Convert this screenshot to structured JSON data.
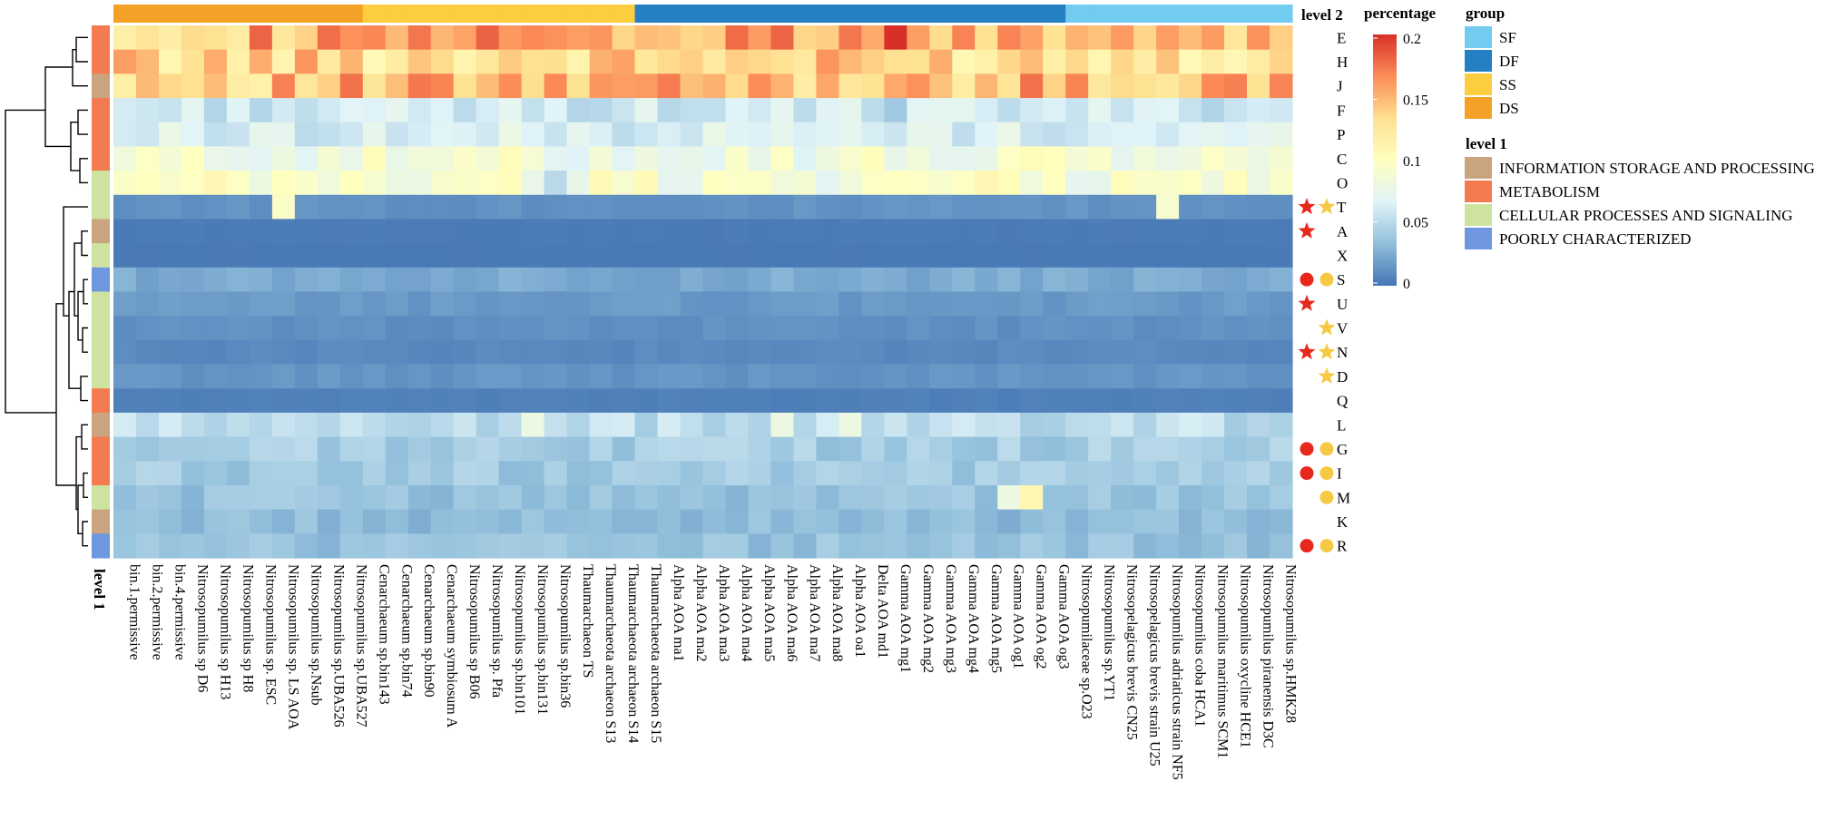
{
  "chart_data": {
    "type": "heatmap",
    "title": "",
    "color_scale": {
      "title": "percentage",
      "ticks": [
        0.2,
        0.15,
        0.1,
        0.05,
        0
      ],
      "tick_labels": [
        "0.2",
        "0.15",
        "0.1",
        "0.05",
        "0"
      ],
      "min": 0,
      "max": 0.2,
      "stops": [
        "#4575B4",
        "#91BFDB",
        "#E0F3F8",
        "#FFFFBF",
        "#FEE090",
        "#FC8D59",
        "#D73027"
      ]
    },
    "column_annotation": {
      "title": "level 2"
    },
    "row_annotation": {
      "title": "level 1"
    },
    "columns": [
      {
        "name": "bin.1.permissive",
        "group": "DS"
      },
      {
        "name": "bin.2.permissive",
        "group": "DS"
      },
      {
        "name": "bin.4.permissive",
        "group": "DS"
      },
      {
        "name": "Nitrosopumilus sp D6",
        "group": "DS"
      },
      {
        "name": "Nitrosopumilus sp H13",
        "group": "DS"
      },
      {
        "name": "Nitrosopumilus sp H8",
        "group": "DS"
      },
      {
        "name": "Nitrosopumilus sp. ESC",
        "group": "DS"
      },
      {
        "name": "Nitrosopumilus sp. LS AOA",
        "group": "DS"
      },
      {
        "name": "Nitrosopumilus sp.Nsub",
        "group": "DS"
      },
      {
        "name": "Nitrosopumilus sp.UBA526",
        "group": "DS"
      },
      {
        "name": "Nitrosopumilus sp.UBA527",
        "group": "DS"
      },
      {
        "name": "Cenarchaeum sp.bin143",
        "group": "SS"
      },
      {
        "name": "Cenarchaeum sp.bin74",
        "group": "SS"
      },
      {
        "name": "Cenarchaeum sp.bin90",
        "group": "SS"
      },
      {
        "name": "Cenarchaeum symbiosum A",
        "group": "SS"
      },
      {
        "name": "Nitrosopumilus sp B06",
        "group": "SS"
      },
      {
        "name": "Nitrosopumilus sp. Pfa",
        "group": "SS"
      },
      {
        "name": "Nitrosopumilus sp.bin101",
        "group": "SS"
      },
      {
        "name": "Nitrosopumilus sp.bin131",
        "group": "SS"
      },
      {
        "name": "Nitrosopumilus sp.bin36",
        "group": "SS"
      },
      {
        "name": "Thaumarchaeon TS",
        "group": "SS"
      },
      {
        "name": "Thaumarchaeota archaeon S13",
        "group": "SS"
      },
      {
        "name": "Thaumarchaeota archaeon S14",
        "group": "SS"
      },
      {
        "name": "Thaumarchaeota archaeon S15",
        "group": "DF"
      },
      {
        "name": "Alpha AOA ma1",
        "group": "DF"
      },
      {
        "name": "Alpha AOA ma2",
        "group": "DF"
      },
      {
        "name": "Alpha AOA ma3",
        "group": "DF"
      },
      {
        "name": "Alpha AOA ma4",
        "group": "DF"
      },
      {
        "name": "Alpha AOA ma5",
        "group": "DF"
      },
      {
        "name": "Alpha AOA ma6",
        "group": "DF"
      },
      {
        "name": "Alpha AOA ma7",
        "group": "DF"
      },
      {
        "name": "Alpha AOA ma8",
        "group": "DF"
      },
      {
        "name": "Alpha AOA oa1",
        "group": "DF"
      },
      {
        "name": "Delta AOA md1",
        "group": "DF"
      },
      {
        "name": "Gamma AOA mg1",
        "group": "DF"
      },
      {
        "name": "Gamma AOA mg2",
        "group": "DF"
      },
      {
        "name": "Gamma AOA mg3",
        "group": "DF"
      },
      {
        "name": "Gamma AOA mg4",
        "group": "DF"
      },
      {
        "name": "Gamma AOA mg5",
        "group": "DF"
      },
      {
        "name": "Gamma AOA og1",
        "group": "DF"
      },
      {
        "name": "Gamma AOA og2",
        "group": "DF"
      },
      {
        "name": "Gamma AOA og3",
        "group": "DF"
      },
      {
        "name": "Nitrosopumilaceae sp.O23",
        "group": "SF"
      },
      {
        "name": "Nitrosopumilus sp.YT1",
        "group": "SF"
      },
      {
        "name": "Nitrosopelagicus brevis CN25",
        "group": "SF"
      },
      {
        "name": "Nitrosopelagicus brevis strain U25",
        "group": "SF"
      },
      {
        "name": "Nitrosopumilus adriaticus strain NF5",
        "group": "SF"
      },
      {
        "name": "Nitrosopumilus coba HCA1",
        "group": "SF"
      },
      {
        "name": "Nitrosopumilus maritimus SCM1",
        "group": "SF"
      },
      {
        "name": "Nitrosopumilus oxycline HCE1",
        "group": "SF"
      },
      {
        "name": "Nitrosopumilus piranensis D3C",
        "group": "SF"
      },
      {
        "name": "Nitrosopumilus sp.HMK28",
        "group": "SF"
      }
    ],
    "rows": [
      {
        "label": "E",
        "category": "METABOLISM",
        "markers": []
      },
      {
        "label": "H",
        "category": "METABOLISM",
        "markers": []
      },
      {
        "label": "J",
        "category": "INFORMATION STORAGE AND PROCESSING",
        "markers": []
      },
      {
        "label": "F",
        "category": "METABOLISM",
        "markers": []
      },
      {
        "label": "P",
        "category": "METABOLISM",
        "markers": []
      },
      {
        "label": "C",
        "category": "METABOLISM",
        "markers": []
      },
      {
        "label": "O",
        "category": "CELLULAR PROCESSES AND SIGNALING",
        "markers": []
      },
      {
        "label": "T",
        "category": "CELLULAR PROCESSES AND SIGNALING",
        "markers": [
          "red-star",
          "yellow-star"
        ]
      },
      {
        "label": "A",
        "category": "INFORMATION STORAGE AND PROCESSING",
        "markers": [
          "red-star"
        ]
      },
      {
        "label": "X",
        "category": "CELLULAR PROCESSES AND SIGNALING",
        "markers": []
      },
      {
        "label": "S",
        "category": "POORLY CHARACTERIZED",
        "markers": [
          "red-circle",
          "yellow-circle"
        ]
      },
      {
        "label": "U",
        "category": "CELLULAR PROCESSES AND SIGNALING",
        "markers": [
          "red-star"
        ]
      },
      {
        "label": "V",
        "category": "CELLULAR PROCESSES AND SIGNALING",
        "markers": [
          "yellow-star"
        ]
      },
      {
        "label": "N",
        "category": "CELLULAR PROCESSES AND SIGNALING",
        "markers": [
          "red-star",
          "yellow-star"
        ]
      },
      {
        "label": "D",
        "category": "CELLULAR PROCESSES AND SIGNALING",
        "markers": [
          "yellow-star"
        ]
      },
      {
        "label": "Q",
        "category": "METABOLISM",
        "markers": []
      },
      {
        "label": "L",
        "category": "INFORMATION STORAGE AND PROCESSING",
        "markers": []
      },
      {
        "label": "G",
        "category": "METABOLISM",
        "markers": [
          "red-circle",
          "yellow-circle"
        ]
      },
      {
        "label": "I",
        "category": "METABOLISM",
        "markers": [
          "red-circle",
          "yellow-circle"
        ]
      },
      {
        "label": "M",
        "category": "CELLULAR PROCESSES AND SIGNALING",
        "markers": [
          "yellow-circle"
        ]
      },
      {
        "label": "K",
        "category": "INFORMATION STORAGE AND PROCESSING",
        "markers": []
      },
      {
        "label": "R",
        "category": "POORLY CHARACTERIZED",
        "markers": [
          "red-circle",
          "yellow-circle"
        ]
      }
    ],
    "row_means": [
      0.15,
      0.135,
      0.145,
      0.06,
      0.065,
      0.085,
      0.09,
      0.013,
      0.003,
      0.002,
      0.024,
      0.016,
      0.012,
      0.009,
      0.014,
      0.005,
      0.052,
      0.042,
      0.04,
      0.036,
      0.032,
      0.036
    ],
    "cell_overrides": [
      {
        "row": "E",
        "column": "Gamma AOA mg1",
        "value": 0.205
      },
      {
        "row": "E",
        "column": "Alpha AOA oa1",
        "value": 0.175
      },
      {
        "row": "E",
        "column": "Cenarchaeum sp.bin90",
        "value": 0.175
      },
      {
        "row": "E",
        "column": "Nitrosopumilus sp.bin36",
        "value": 0.165
      },
      {
        "row": "E",
        "column": "Thaumarchaeon TS",
        "value": 0.16
      },
      {
        "row": "J",
        "column": "Gamma AOA mg2",
        "value": 0.165
      },
      {
        "row": "J",
        "column": "Thaumarchaeota archaeon S14",
        "value": 0.16
      },
      {
        "row": "O",
        "column": "Nitrosopumilus sp.bin36",
        "value": 0.05
      },
      {
        "row": "T",
        "column": "Nitrosopumilus sp. LS AOA",
        "value": 0.095
      },
      {
        "row": "T",
        "column": "Nitrosopumilus adriaticus strain NF5",
        "value": 0.09
      },
      {
        "row": "F",
        "column": "Gamma AOA mg1",
        "value": 0.04
      },
      {
        "row": "L",
        "column": "Nitrosopumilus sp.bin131",
        "value": 0.08
      },
      {
        "row": "L",
        "column": "Alpha AOA ma6",
        "value": 0.08
      },
      {
        "row": "L",
        "column": "Alpha AOA oa1",
        "value": 0.08
      },
      {
        "row": "M",
        "column": "Gamma AOA og1",
        "value": 0.08
      },
      {
        "row": "M",
        "column": "Gamma AOA og2",
        "value": 0.11
      }
    ],
    "legend": {
      "group": {
        "title": "group",
        "entries": [
          {
            "key": "SF",
            "label": "SF",
            "color": "#73CBF0"
          },
          {
            "key": "DF",
            "label": "DF",
            "color": "#2480C2"
          },
          {
            "key": "SS",
            "label": "SS",
            "color": "#FBCD3F"
          },
          {
            "key": "DS",
            "label": "DS",
            "color": "#F4A227"
          }
        ]
      },
      "level1": {
        "title": "level 1",
        "entries": [
          {
            "key": "INFORMATION STORAGE AND PROCESSING",
            "label": "INFORMATION STORAGE AND PROCESSING",
            "color": "#C9A47E"
          },
          {
            "key": "METABOLISM",
            "label": "METABOLISM",
            "color": "#F47A4F"
          },
          {
            "key": "CELLULAR PROCESSES AND SIGNALING",
            "label": "CELLULAR PROCESSES AND SIGNALING",
            "color": "#CFE3A0"
          },
          {
            "key": "POORLY CHARACTERIZED",
            "label": "POORLY CHARACTERIZED",
            "color": "#6E97DF"
          }
        ]
      }
    },
    "marker_colors": {
      "red": "#E8281C",
      "yellow": "#F6C945"
    }
  }
}
